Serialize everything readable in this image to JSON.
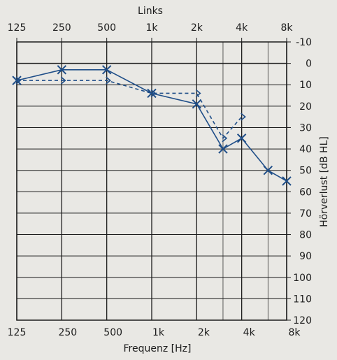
{
  "chart_data": {
    "type": "line",
    "title": "Links",
    "xlabel": "Frequenz [Hz]",
    "ylabel": "Hörverlust [dB HL]",
    "top_tick_labels": [
      "125",
      "250",
      "500",
      "1k",
      "2k",
      "4k",
      "8k"
    ],
    "bottom_tick_labels": [
      "125",
      "250",
      "500",
      "1k",
      "2k",
      "4k",
      "8k"
    ],
    "x": [
      125,
      250,
      500,
      1000,
      2000,
      3000,
      4000,
      6000,
      8000
    ],
    "y_ticks": [
      -10,
      0,
      10,
      20,
      30,
      40,
      50,
      60,
      70,
      80,
      90,
      100,
      110,
      120
    ],
    "ylim": [
      -10,
      120
    ],
    "y_inverted": true,
    "x_scale": "log2",
    "grid": true,
    "colors": {
      "series": "#1f4e88",
      "grid": "#1c1c1c",
      "background": "#e9e8e4"
    },
    "series": [
      {
        "marker": "x",
        "line": "solid",
        "points": [
          [
            125,
            8
          ],
          [
            250,
            3
          ],
          [
            500,
            3
          ],
          [
            1000,
            14
          ],
          [
            2000,
            19
          ],
          [
            3000,
            40
          ],
          [
            4000,
            35
          ],
          [
            6000,
            50
          ],
          [
            8000,
            55
          ]
        ]
      },
      {
        "marker": ">",
        "line": "dashed",
        "points": [
          [
            125,
            8
          ],
          [
            250,
            8
          ],
          [
            500,
            8
          ],
          [
            1000,
            14
          ],
          [
            2000,
            14
          ],
          [
            3000,
            35
          ],
          [
            4000,
            25
          ]
        ]
      }
    ]
  }
}
